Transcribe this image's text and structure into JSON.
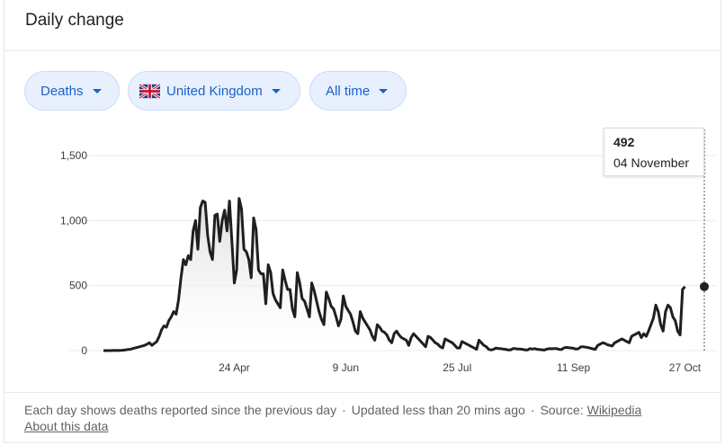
{
  "header": {
    "title": "Daily change"
  },
  "filters": {
    "metric": "Deaths",
    "country": "United Kingdom",
    "range": "All time"
  },
  "tooltip": {
    "value": "492",
    "date": "04 November"
  },
  "footer": {
    "note": "Each day shows deaths reported since the previous day",
    "updated": "Updated less than 20 mins ago",
    "source_label": "Source:",
    "source_link": "Wikipedia",
    "about": "About this data"
  },
  "colors": {
    "line": "#1f1f1f",
    "area_top": "#d6d6d6",
    "chip_bg": "#e8f0fe",
    "chip_text": "#1a62c7",
    "grid": "#ebebeb"
  },
  "chart_data": {
    "type": "line",
    "x_start": "2020-03-01",
    "x_end": "2020-11-04",
    "ylim": [
      0,
      1500
    ],
    "y_ticks": [
      0,
      500,
      1000,
      1500
    ],
    "y_tick_labels": [
      "0",
      "500",
      "1,000",
      "1,500"
    ],
    "x_ticks": [
      {
        "date": "2020-04-24",
        "label": "24 Apr"
      },
      {
        "date": "2020-06-09",
        "label": "9 Jun"
      },
      {
        "date": "2020-07-25",
        "label": "25 Jul"
      },
      {
        "date": "2020-09-11",
        "label": "11 Sep"
      },
      {
        "date": "2020-10-27",
        "label": "27 Oct"
      }
    ],
    "highlight": {
      "date": "2020-11-04",
      "value": 492
    },
    "series": [
      {
        "start_date": "2020-03-01",
        "values": [
          0,
          0,
          0,
          0,
          2,
          1,
          1,
          2,
          3,
          5,
          8,
          10,
          15,
          20,
          25,
          30,
          35,
          40,
          50,
          60,
          40,
          55,
          70,
          110,
          160,
          190,
          180,
          230,
          260,
          300,
          280,
          390,
          560,
          700,
          660,
          730,
          700,
          920,
          1000,
          780,
          1100,
          1150,
          1140,
          890,
          760,
          700,
          1040,
          1050,
          840,
          1000,
          1080,
          920,
          1150,
          840,
          520,
          620,
          1170,
          1090,
          780,
          760,
          700,
          560,
          1020,
          930,
          620,
          590,
          590,
          360,
          660,
          600,
          440,
          390,
          360,
          330,
          620,
          540,
          470,
          470,
          320,
          260,
          600,
          520,
          400,
          380,
          320,
          260,
          520,
          460,
          380,
          300,
          240,
          200,
          450,
          400,
          340,
          320,
          260,
          190,
          240,
          420,
          340,
          310,
          280,
          220,
          150,
          130,
          300,
          250,
          220,
          190,
          160,
          110,
          80,
          200,
          180,
          150,
          140,
          120,
          80,
          60,
          130,
          150,
          120,
          100,
          90,
          80,
          40,
          100,
          130,
          110,
          90,
          70,
          50,
          30,
          110,
          100,
          80,
          60,
          50,
          30,
          20,
          90,
          80,
          70,
          60,
          40,
          20,
          20,
          70,
          60,
          50,
          40,
          30,
          20,
          10,
          80,
          60,
          40,
          30,
          10,
          5,
          10,
          20,
          15,
          15,
          12,
          10,
          5,
          5,
          15,
          15,
          12,
          12,
          10,
          5,
          5,
          15,
          12,
          15,
          10,
          8,
          6,
          4,
          12,
          15,
          14,
          15,
          16,
          10,
          8,
          20,
          25,
          22,
          20,
          18,
          12,
          14,
          28,
          30,
          26,
          24,
          18,
          14,
          10,
          40,
          50,
          60,
          55,
          45,
          40,
          35,
          60,
          70,
          80,
          90,
          80,
          70,
          60,
          110,
          120,
          130,
          140,
          100,
          130,
          110,
          150,
          200,
          250,
          350,
          300,
          200,
          150,
          300,
          350,
          330,
          260,
          230,
          150,
          120,
          470,
          492
        ]
      }
    ]
  }
}
